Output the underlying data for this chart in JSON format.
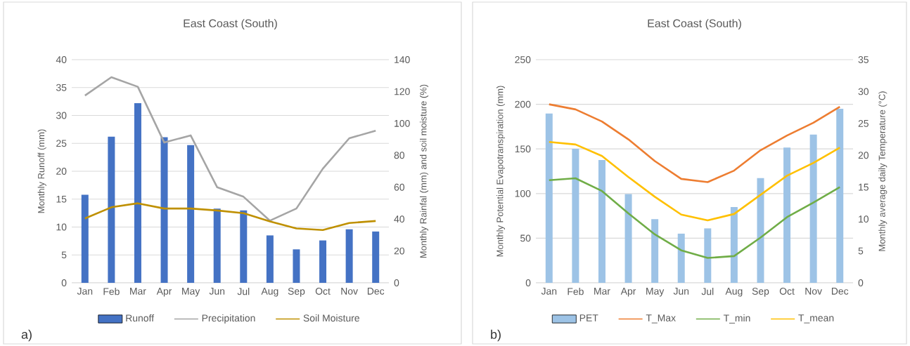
{
  "chart_data": [
    {
      "type": "bar",
      "title": "East Coast (South)",
      "ylabel": "Monthly Runoff (mm)",
      "y2label": "Monthly Rainfal (mm) and soil moisture (%)",
      "categories": [
        "Jan",
        "Feb",
        "Mar",
        "Apr",
        "May",
        "Jun",
        "Jul",
        "Aug",
        "Sep",
        "Oct",
        "Nov",
        "Dec"
      ],
      "series": [
        {
          "name": "Runoff",
          "color": "#4472c4",
          "values": [
            15.8,
            26.2,
            32.2,
            26.1,
            24.7,
            13.3,
            13.0,
            8.5,
            6.0,
            7.6,
            9.6,
            9.2
          ]
        },
        {
          "name": "Precipitation",
          "type": "line",
          "axis": "y2",
          "color": "#a5a5a5",
          "values": [
            117.5,
            129,
            123,
            88,
            92.5,
            60,
            54,
            39,
            46.6,
            71.6,
            90.7,
            95.4
          ]
        },
        {
          "name": "Soil Moisture",
          "type": "line",
          "axis": "y2",
          "color": "#bf9000",
          "values": [
            40.4,
            47.4,
            49.9,
            46.6,
            46.6,
            45.4,
            43.7,
            38.5,
            34.1,
            33.1,
            37.5,
            38.8
          ]
        }
      ],
      "ylim": [
        0,
        40
      ],
      "yticks": [
        0,
        5,
        10,
        15,
        20,
        25,
        30,
        35,
        40
      ],
      "y2lim": [
        0,
        140
      ],
      "y2ticks": [
        0,
        20,
        40,
        60,
        80,
        100,
        120,
        140
      ],
      "grid": "y",
      "legend": "bottom",
      "line_style": "solid",
      "annotations": [
        "a)"
      ]
    },
    {
      "type": "bar",
      "title": "East Coast (South)",
      "ylabel": "Monthly Potential Evapotranspiration (mm)",
      "y2label": "Monthly average daily Temperature (°C)",
      "categories": [
        "Jan",
        "Feb",
        "Mar",
        "Apr",
        "May",
        "Jun",
        "Jul",
        "Aug",
        "Sep",
        "Oct",
        "Nov",
        "Dec"
      ],
      "series": [
        {
          "name": "PET",
          "color": "#9dc3e6",
          "values": [
            189.6,
            150.2,
            137.6,
            99.5,
            71.4,
            55.1,
            61,
            85,
            117.4,
            151.5,
            166,
            194.9
          ]
        },
        {
          "name": "T_Max",
          "type": "line",
          "axis": "y2",
          "color": "#ed7d31",
          "values": [
            28.0,
            27.2,
            25.3,
            22.5,
            19.1,
            16.3,
            15.8,
            17.6,
            20.8,
            23.1,
            25.1,
            27.6
          ]
        },
        {
          "name": "T_min",
          "type": "line",
          "axis": "y2",
          "color": "#70ad47",
          "values": [
            16.1,
            16.4,
            14.4,
            10.9,
            7.6,
            5.1,
            3.9,
            4.2,
            7.1,
            10.3,
            12.6,
            15.0
          ]
        },
        {
          "name": "T_mean",
          "type": "line",
          "axis": "y2",
          "color": "#ffc000",
          "values": [
            22.1,
            21.7,
            19.9,
            16.6,
            13.5,
            10.7,
            9.8,
            10.8,
            13.8,
            16.8,
            18.8,
            21.2
          ]
        }
      ],
      "ylim": [
        0,
        250
      ],
      "yticks": [
        0,
        50,
        100,
        150,
        200,
        250
      ],
      "y2lim": [
        0,
        35
      ],
      "y2ticks": [
        0,
        5,
        10,
        15,
        20,
        25,
        30,
        35
      ],
      "grid": "y",
      "legend": "bottom",
      "line_style": "solid",
      "annotations": [
        "b)"
      ]
    }
  ]
}
